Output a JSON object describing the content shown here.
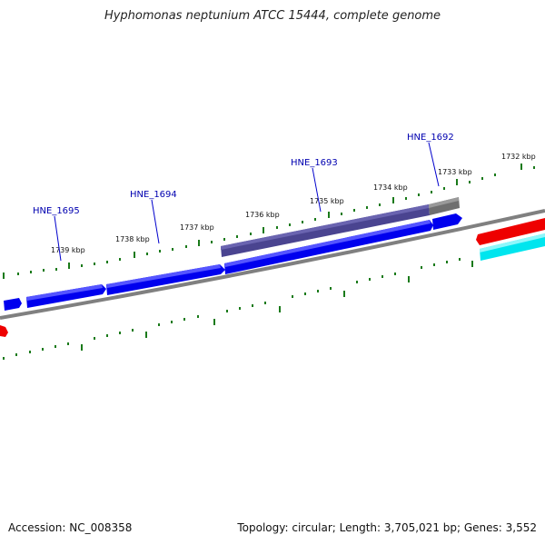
{
  "title": "Hyphomonas neptunium ATCC 15444, complete genome",
  "footer": {
    "accession": "Accession: NC_008358",
    "topology": "Topology: circular; Length: 3,705,021 bp; Genes: 3,552"
  },
  "ruler_labels": [
    "1739 kbp",
    "1738 kbp",
    "1737 kbp",
    "1736 kbp",
    "1735 kbp",
    "1734 kbp",
    "1733 kbp",
    "1732 kbp"
  ],
  "gene_labels": [
    "HNE_1695",
    "HNE_1694",
    "HNE_1693",
    "HNE_1692"
  ],
  "colors": {
    "forward_cds": "#0000ee",
    "gene_feature": "#4a4490",
    "grey_feature": "#6f6f6f",
    "reverse_red": "#ee0000",
    "reverse_cyan": "#00e5ee",
    "backbone": "#808080",
    "tick": "#1a7a1a",
    "label": "#0000b0"
  }
}
